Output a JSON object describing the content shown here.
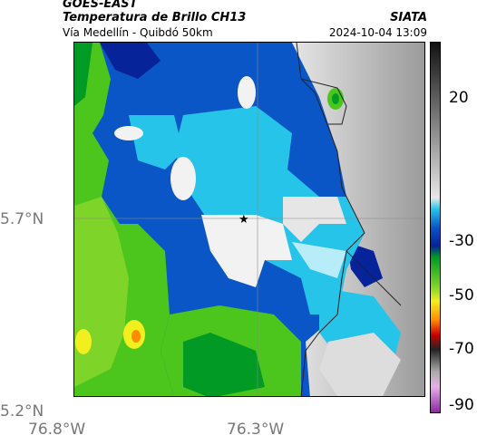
{
  "header": {
    "satellite": "GOES-EAST",
    "product": "Temperatura de Brillo CH13",
    "region": "Vía Medellín - Quibdó 50km",
    "agency": "SIATA",
    "datetime": "2024-10-04 13:09"
  },
  "axes": {
    "lat_ticks": [
      "5.7°N",
      "5.2°N"
    ],
    "lon_ticks": [
      "76.8°W",
      "76.3°W"
    ]
  },
  "colorbar": {
    "ticks": [
      "20",
      "-30",
      "-50",
      "-70",
      "-90"
    ]
  },
  "map": {
    "marker": "star-marker",
    "layers": [
      "brightness-temperature",
      "coastline-borders",
      "gridlines"
    ]
  },
  "colors": {
    "deep_green": "#009a24",
    "green": "#4cc51c",
    "light_green": "#7fd42a",
    "yellow": "#f2ef1e",
    "orange": "#ff8c00",
    "blue": "#0b56c6",
    "dark_blue": "#06239a",
    "cyan": "#27c4ea",
    "light_cyan": "#b7ecf8",
    "warm_gray": "#bdbdbd"
  }
}
